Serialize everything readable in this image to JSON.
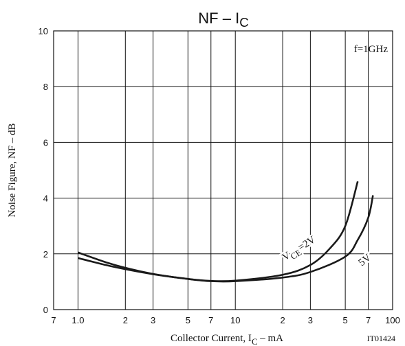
{
  "chart_data": {
    "type": "line",
    "title": [
      "NF  –  I",
      "C"
    ],
    "x_label": [
      "Collector Current, I",
      "C",
      "  –  mA"
    ],
    "y_label": "Noise Figure, NF  –  dB",
    "annotations": [
      "f=1GHz",
      "IT01424"
    ],
    "xscale": "log",
    "grid": true,
    "xlim": [
      0.7,
      100
    ],
    "ylim": [
      0,
      10
    ],
    "xticks": [
      {
        "value": 0.7,
        "label": "7"
      },
      {
        "value": 1,
        "label": "1.0"
      },
      2,
      3,
      5,
      7,
      10,
      {
        "value": 20,
        "label": "2"
      },
      {
        "value": 30,
        "label": "3"
      },
      {
        "value": 50,
        "label": "5"
      },
      {
        "value": 70,
        "label": "7"
      },
      100
    ],
    "yticks": [
      0,
      2,
      4,
      6,
      8,
      10
    ],
    "series": [
      {
        "label": [
          "V",
          "CE",
          "=2V"
        ],
        "color": "#1a1a1a",
        "x": [
          1,
          1.5,
          2,
          3,
          5,
          7,
          10,
          20,
          30,
          40,
          50,
          60
        ],
        "values": [
          2.05,
          1.7,
          1.5,
          1.28,
          1.1,
          1.03,
          1.04,
          1.25,
          1.6,
          2.2,
          3.0,
          4.6
        ]
      },
      {
        "label": [
          "5V"
        ],
        "color": "#1a1a1a",
        "x": [
          1,
          1.5,
          2,
          3,
          5,
          7,
          10,
          20,
          30,
          50,
          60,
          70,
          75
        ],
        "values": [
          1.85,
          1.6,
          1.45,
          1.27,
          1.1,
          1.02,
          1.02,
          1.15,
          1.35,
          1.9,
          2.5,
          3.3,
          4.1
        ]
      }
    ]
  }
}
